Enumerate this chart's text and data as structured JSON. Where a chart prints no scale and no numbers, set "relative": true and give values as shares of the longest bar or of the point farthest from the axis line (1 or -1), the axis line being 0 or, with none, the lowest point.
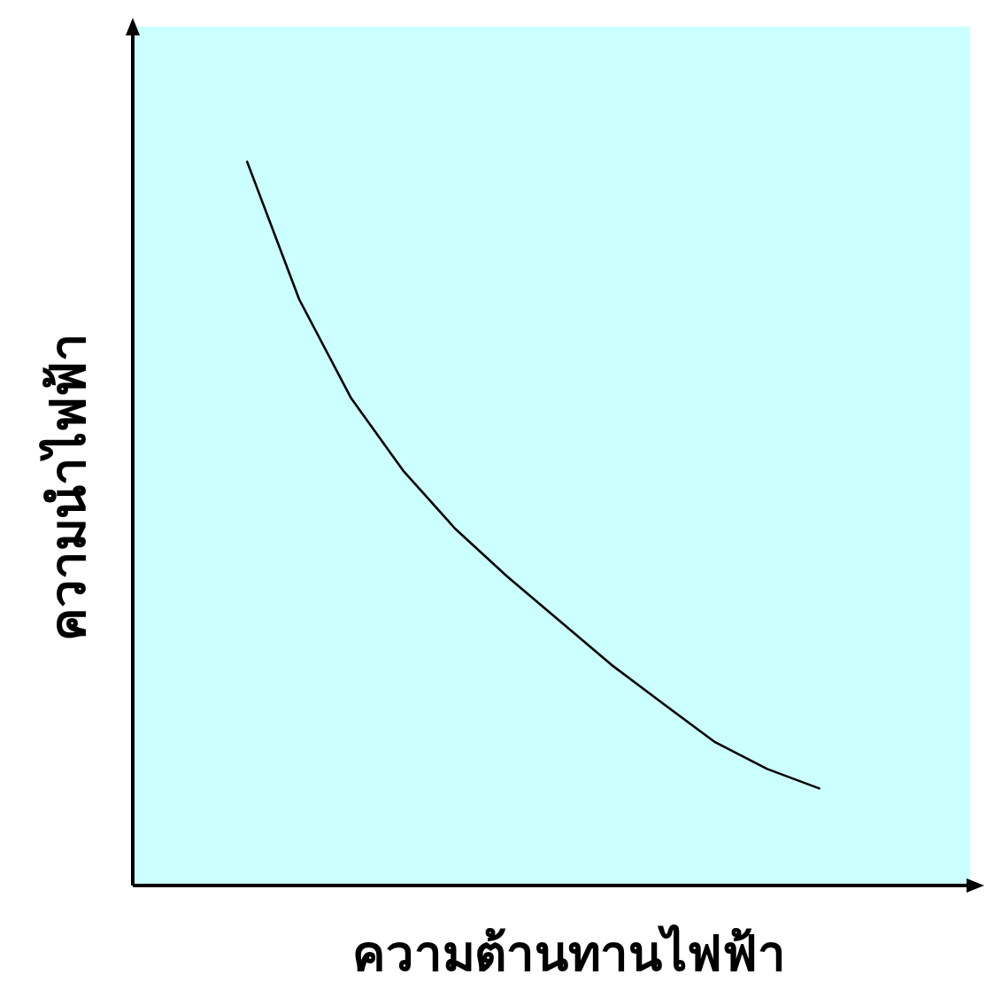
{
  "chart_data": {
    "type": "line",
    "relative": true,
    "xlabel": "ความต้านทานไฟฟ้า",
    "ylabel": "ความนำไฟฟ้า",
    "categories": [
      null,
      null,
      null,
      null,
      null,
      null,
      null,
      null,
      null,
      null,
      null,
      null
    ],
    "series": [
      {
        "color": "#000000",
        "values": [
          1,
          0.81,
          0.673,
          0.573,
          0.493,
          0.427,
          0.366,
          0.305,
          0.251,
          0.198,
          0.161,
          0.134
        ]
      }
    ],
    "marker": "none",
    "line_style": "solid"
  }
}
